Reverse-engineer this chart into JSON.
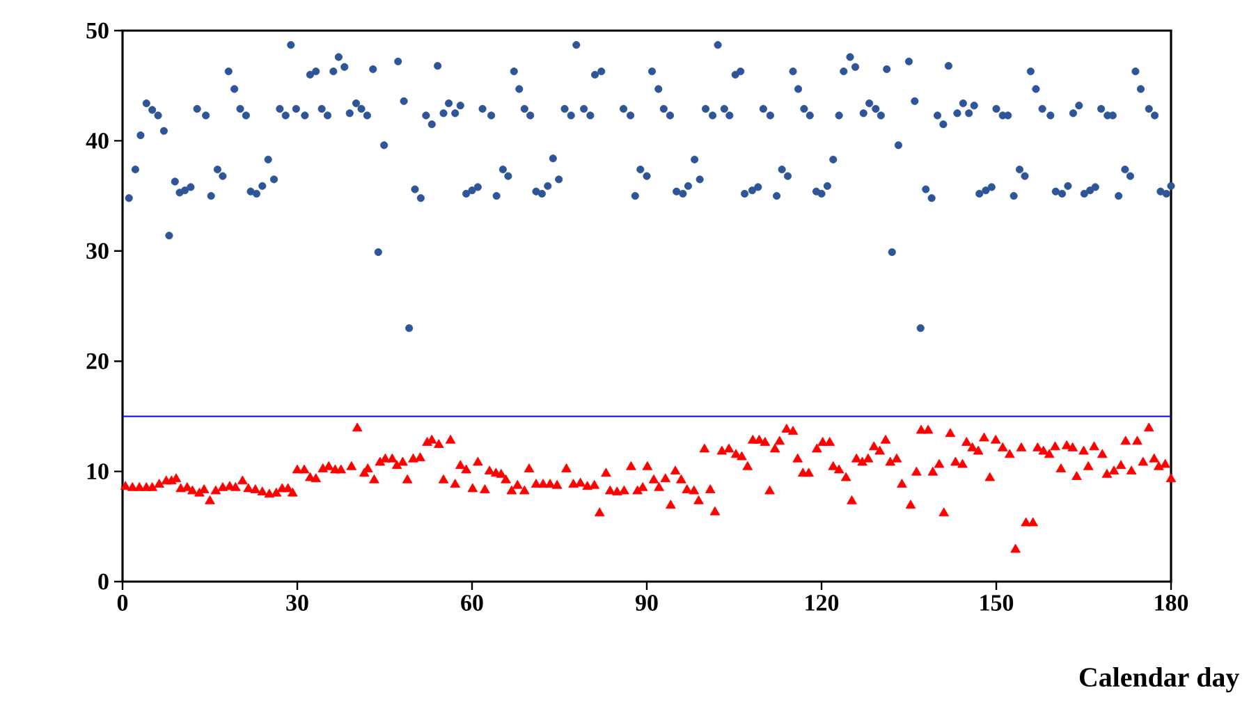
{
  "chart_data": {
    "type": "scatter",
    "xlabel": "Calendar day",
    "xlim": [
      0,
      180
    ],
    "ylim": [
      0,
      50
    ],
    "xticks": [
      0,
      30,
      60,
      90,
      120,
      150,
      180
    ],
    "yticks": [
      0,
      10,
      20,
      30,
      40,
      50
    ],
    "series": [
      {
        "marker": "circle",
        "color": "#2e5597",
        "x": [
          1.1,
          2.2,
          3.1,
          4.1,
          5.1,
          6.1,
          7.1,
          8.0,
          9.0,
          9.8,
          10.7,
          11.7,
          12.8,
          14.3,
          15.2,
          16.3,
          17.2,
          18.2,
          19.2,
          20.2,
          21.2,
          22.0,
          23.0,
          24.0,
          25.0,
          26.0,
          27.0,
          28.0,
          28.9,
          29.8,
          31.3,
          32.2,
          33.2,
          34.2,
          35.2,
          36.2,
          37.1,
          38.1,
          39.0,
          40.1,
          41.0,
          42.0,
          43.0,
          43.9,
          44.9,
          47.3,
          48.3,
          49.2,
          50.2,
          51.2,
          52.1,
          53.1,
          54.1,
          55.1,
          56.0,
          57.1,
          58.0,
          59.0,
          60.0,
          61.0,
          61.8,
          63.3,
          64.2,
          65.3,
          66.2,
          67.2,
          68.1,
          69.0,
          70.0,
          71.0,
          72.0,
          73.0,
          73.9,
          74.9,
          75.9,
          77.0,
          77.9,
          79.2,
          80.3,
          81.1,
          82.2,
          86.0,
          87.2,
          88.0,
          88.9,
          90.0,
          90.9,
          92.0,
          92.9,
          94.0,
          95.1,
          96.2,
          97.1,
          98.2,
          99.1,
          100.1,
          101.3,
          102.2,
          103.3,
          104.2,
          105.2,
          106.1,
          106.8,
          108.1,
          109.1,
          110.0,
          111.2,
          112.3,
          113.2,
          114.2,
          115.1,
          116.0,
          117.0,
          118.0,
          119.1,
          120.0,
          121.0,
          122.0,
          123.0,
          123.8,
          124.9,
          125.8,
          127.2,
          128.2,
          129.3,
          130.2,
          131.2,
          132.1,
          133.2,
          135.0,
          136.0,
          137.0,
          137.9,
          138.9,
          139.9,
          140.9,
          141.8,
          143.3,
          144.3,
          145.3,
          146.2,
          147.1,
          148.2,
          149.2,
          150.0,
          151.1,
          152.0,
          153.0,
          154.0,
          154.9,
          155.9,
          156.8,
          157.9,
          159.3,
          160.2,
          161.3,
          162.3,
          163.2,
          164.2,
          165.1,
          166.1,
          167.0,
          168.0,
          169.1,
          170.0,
          171.0,
          172.1,
          173.0,
          173.9,
          174.8,
          176.2,
          177.2,
          178.2,
          179.2,
          180.0
        ],
        "values": [
          34.8,
          37.4,
          40.5,
          43.4,
          42.8,
          42.3,
          40.9,
          31.4,
          36.3,
          35.3,
          35.5,
          35.8,
          42.9,
          42.3,
          35.0,
          37.4,
          36.8,
          46.3,
          44.7,
          42.9,
          42.3,
          35.4,
          35.2,
          35.9,
          38.3,
          36.5,
          42.9,
          42.3,
          48.7,
          42.9,
          42.3,
          46.0,
          46.3,
          42.9,
          42.3,
          46.3,
          47.6,
          46.7,
          42.5,
          43.4,
          42.9,
          42.3,
          46.5,
          29.9,
          39.6,
          47.2,
          43.6,
          23.0,
          35.6,
          34.8,
          42.3,
          41.5,
          46.8,
          42.5,
          43.4,
          42.5,
          43.2,
          35.2,
          35.5,
          35.8,
          42.9,
          42.3,
          35.0,
          37.4,
          36.8,
          46.3,
          44.7,
          42.9,
          42.3,
          35.4,
          35.2,
          35.9,
          38.4,
          36.5,
          42.9,
          42.3,
          48.7,
          42.9,
          42.3,
          46.0,
          46.3,
          42.9,
          42.3,
          35.0,
          37.4,
          36.8,
          46.3,
          44.7,
          42.9,
          42.3,
          35.4,
          35.2,
          35.9,
          38.3,
          36.5,
          42.9,
          42.3,
          48.7,
          42.9,
          42.3,
          46.0,
          46.3,
          35.2,
          35.5,
          35.8,
          42.9,
          42.3,
          35.0,
          37.4,
          36.8,
          46.3,
          44.7,
          42.9,
          42.3,
          35.4,
          35.2,
          35.9,
          38.3,
          42.3,
          46.3,
          47.6,
          46.7,
          42.5,
          43.4,
          42.9,
          42.3,
          46.5,
          29.9,
          39.6,
          47.2,
          43.6,
          23.0,
          35.6,
          34.8,
          42.3,
          41.5,
          46.8,
          42.5,
          43.4,
          42.5,
          43.2,
          35.2,
          35.5,
          35.8,
          42.9,
          42.3,
          42.3,
          35.0,
          37.4,
          36.8,
          46.3,
          44.7,
          42.9,
          42.3,
          35.4,
          35.2,
          35.9,
          42.5,
          43.2,
          35.2,
          35.5,
          35.8,
          42.9,
          42.3,
          42.3,
          35.0,
          37.4,
          36.8,
          46.3,
          44.7,
          42.9,
          42.3,
          35.4,
          35.2,
          35.9
        ]
      },
      {
        "marker": "triangle",
        "color": "#ff0000",
        "x": [
          0.5,
          1.7,
          2.9,
          4.1,
          5.1,
          6.3,
          7.5,
          8.4,
          9.2,
          10.0,
          11.1,
          12.0,
          13.2,
          14.0,
          15.0,
          16.0,
          17.2,
          18.4,
          19.4,
          20.6,
          21.6,
          22.8,
          24.0,
          25.2,
          26.4,
          27.4,
          28.4,
          29.2,
          30.0,
          31.2,
          32.2,
          33.2,
          34.4,
          35.4,
          36.5,
          37.5,
          39.3,
          40.3,
          41.5,
          42.1,
          43.2,
          44.2,
          45.1,
          46.3,
          47.1,
          48.1,
          48.9,
          49.9,
          51.1,
          52.3,
          53.1,
          54.3,
          55.1,
          56.3,
          57.1,
          58.0,
          59.0,
          60.1,
          61.0,
          62.2,
          63.0,
          64.1,
          65.0,
          65.8,
          66.8,
          67.8,
          69.0,
          69.8,
          71.0,
          72.2,
          73.4,
          74.6,
          76.2,
          77.4,
          78.6,
          79.8,
          81.0,
          81.9,
          83.0,
          83.7,
          84.9,
          86.1,
          87.3,
          88.4,
          89.3,
          90.1,
          91.2,
          92.1,
          93.2,
          94.1,
          94.9,
          95.9,
          96.9,
          98.1,
          98.9,
          99.9,
          100.9,
          101.7,
          102.9,
          104.1,
          105.3,
          106.3,
          107.3,
          108.2,
          109.3,
          110.3,
          111.1,
          112.0,
          112.8,
          114.0,
          115.1,
          115.9,
          116.8,
          117.8,
          119.2,
          120.2,
          121.4,
          122.0,
          123.0,
          124.2,
          125.2,
          126.0,
          127.0,
          128.0,
          129.0,
          130.0,
          131.0,
          131.8,
          132.9,
          133.8,
          135.3,
          136.3,
          137.1,
          138.3,
          139.1,
          140.2,
          141.0,
          142.1,
          143.0,
          144.2,
          144.9,
          145.9,
          146.9,
          147.9,
          148.9,
          149.9,
          151.1,
          152.3,
          153.3,
          154.3,
          155.1,
          156.3,
          157.1,
          158.1,
          159.1,
          160.1,
          161.1,
          162.1,
          163.1,
          163.8,
          165.0,
          165.8,
          166.8,
          168.2,
          169.0,
          170.2,
          171.4,
          172.2,
          173.2,
          174.2,
          175.2,
          176.2,
          177.1,
          177.9,
          179.0,
          180.0
        ],
        "values": [
          8.6,
          8.5,
          8.5,
          8.5,
          8.5,
          8.8,
          9.1,
          9.1,
          9.3,
          8.4,
          8.5,
          8.2,
          8.0,
          8.3,
          7.3,
          8.2,
          8.5,
          8.6,
          8.5,
          9.1,
          8.4,
          8.3,
          8.1,
          7.9,
          8.0,
          8.4,
          8.4,
          8.0,
          10.1,
          10.1,
          9.4,
          9.3,
          10.2,
          10.4,
          10.1,
          10.1,
          10.4,
          13.9,
          9.8,
          10.2,
          9.2,
          10.8,
          11.1,
          11.1,
          10.5,
          10.8,
          9.2,
          11.1,
          11.2,
          12.6,
          12.8,
          12.4,
          9.2,
          12.8,
          8.8,
          10.5,
          10.1,
          8.4,
          10.8,
          8.3,
          10.0,
          9.8,
          9.7,
          9.2,
          8.2,
          8.7,
          8.2,
          10.2,
          8.8,
          8.8,
          8.8,
          8.7,
          10.2,
          8.8,
          8.9,
          8.6,
          8.7,
          6.2,
          9.8,
          8.2,
          8.1,
          8.2,
          10.4,
          8.2,
          8.5,
          10.4,
          9.2,
          8.5,
          9.3,
          6.9,
          10.0,
          9.2,
          8.3,
          8.2,
          7.3,
          12.0,
          8.3,
          6.3,
          11.8,
          12.0,
          11.5,
          11.3,
          10.4,
          12.8,
          12.8,
          12.6,
          8.2,
          12.0,
          12.7,
          13.8,
          13.6,
          11.1,
          9.8,
          9.8,
          12.0,
          12.6,
          12.6,
          10.4,
          10.1,
          9.4,
          7.3,
          11.1,
          10.8,
          11.1,
          12.2,
          11.8,
          12.8,
          10.8,
          11.1,
          8.8,
          6.9,
          9.9,
          13.7,
          13.7,
          9.9,
          10.6,
          6.2,
          13.4,
          10.8,
          10.6,
          12.6,
          12.1,
          11.8,
          13.0,
          9.4,
          12.8,
          12.1,
          11.5,
          2.9,
          12.1,
          5.3,
          5.3,
          12.1,
          11.8,
          11.5,
          12.2,
          10.2,
          12.3,
          12.1,
          9.5,
          11.8,
          10.4,
          12.2,
          11.5,
          9.7,
          10.0,
          10.5,
          12.7,
          10.0,
          12.7,
          10.8,
          13.9,
          11.1,
          10.4,
          10.6,
          9.3
        ]
      }
    ],
    "ref_lines": [
      {
        "axis": "y",
        "value": 15,
        "color": "#0000ff"
      }
    ]
  }
}
